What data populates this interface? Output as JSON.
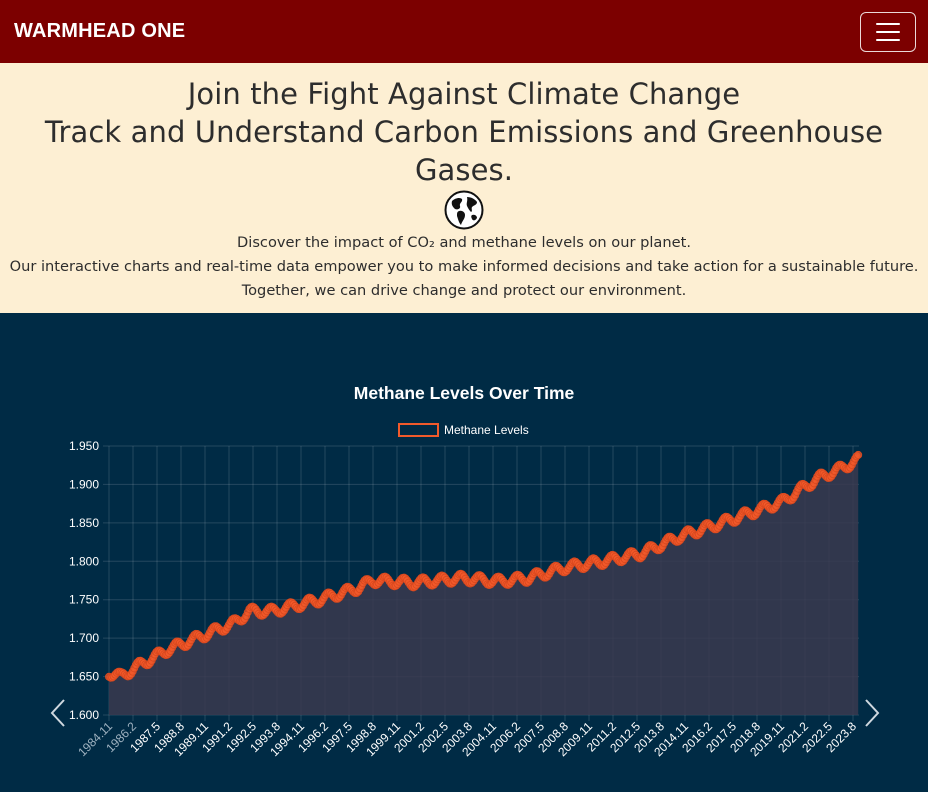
{
  "navbar": {
    "brand": "WARMHEAD ONE",
    "menu_icon": "hamburger-icon"
  },
  "hero": {
    "title_line1": "Join the Fight Against Climate Change",
    "title_line2": "Track and Understand Carbon Emissions and Greenhouse Gases.",
    "globe_icon": "globe-icon",
    "desc_line1": "Discover the impact of CO₂ and methane levels on our planet.",
    "desc_line2": "Our interactive charts and real-time data empower you to make informed decisions and take action for a sustainable future.",
    "desc_line3": "Together, we can drive change and protect our environment."
  },
  "colors": {
    "navbar": "#7c0000",
    "hero_bg": "#fdefd3",
    "section_bg": "#002b45",
    "series_line": "#f15a2b",
    "series_fill": "#3a3a4f"
  },
  "carousel": {
    "prev_icon": "chevron-left-icon",
    "next_icon": "chevron-right-icon"
  },
  "chart_data": {
    "type": "line",
    "title": "Methane Levels Over Time",
    "series_name": "Methane Levels",
    "ylim": [
      1.6,
      1.95
    ],
    "yticks": [
      "1.600",
      "1.650",
      "1.700",
      "1.750",
      "1.800",
      "1.850",
      "1.900",
      "1.950"
    ],
    "xtick_labels": [
      "1984.11",
      "1986.2",
      "1987.5",
      "1988.8",
      "1989.11",
      "1991.2",
      "1992.5",
      "1993.8",
      "1994.11",
      "1996.2",
      "1997.5",
      "1998.8",
      "1999.11",
      "2001.2",
      "2002.5",
      "2003.8",
      "2004.11",
      "2006.2",
      "2007.5",
      "2008.8",
      "2009.11",
      "2011.2",
      "2012.5",
      "2013.8",
      "2014.11",
      "2016.2",
      "2017.5",
      "2018.8",
      "2019.11",
      "2021.2",
      "2022.5",
      "2023.8"
    ],
    "x_start": 1984.875,
    "x_end": 2024.5,
    "anchors": [
      {
        "x": 1984.9,
        "y": 1.655
      },
      {
        "x": 1985.5,
        "y": 1.65
      },
      {
        "x": 1986.5,
        "y": 1.665
      },
      {
        "x": 1988.0,
        "y": 1.685
      },
      {
        "x": 1990.0,
        "y": 1.705
      },
      {
        "x": 1991.5,
        "y": 1.72
      },
      {
        "x": 1992.3,
        "y": 1.735
      },
      {
        "x": 1993.5,
        "y": 1.735
      },
      {
        "x": 1996.0,
        "y": 1.75
      },
      {
        "x": 1998.0,
        "y": 1.765
      },
      {
        "x": 1998.8,
        "y": 1.775
      },
      {
        "x": 2001.0,
        "y": 1.772
      },
      {
        "x": 2003.5,
        "y": 1.778
      },
      {
        "x": 2005.5,
        "y": 1.774
      },
      {
        "x": 2007.0,
        "y": 1.778
      },
      {
        "x": 2009.0,
        "y": 1.792
      },
      {
        "x": 2011.0,
        "y": 1.8
      },
      {
        "x": 2013.0,
        "y": 1.81
      },
      {
        "x": 2015.0,
        "y": 1.832
      },
      {
        "x": 2017.0,
        "y": 1.848
      },
      {
        "x": 2019.0,
        "y": 1.865
      },
      {
        "x": 2020.5,
        "y": 1.878
      },
      {
        "x": 2021.5,
        "y": 1.895
      },
      {
        "x": 2022.5,
        "y": 1.91
      },
      {
        "x": 2023.5,
        "y": 1.92
      },
      {
        "x": 2024.5,
        "y": 1.933
      }
    ],
    "seasonal_amplitude": 0.006,
    "points_per_year": 12
  }
}
